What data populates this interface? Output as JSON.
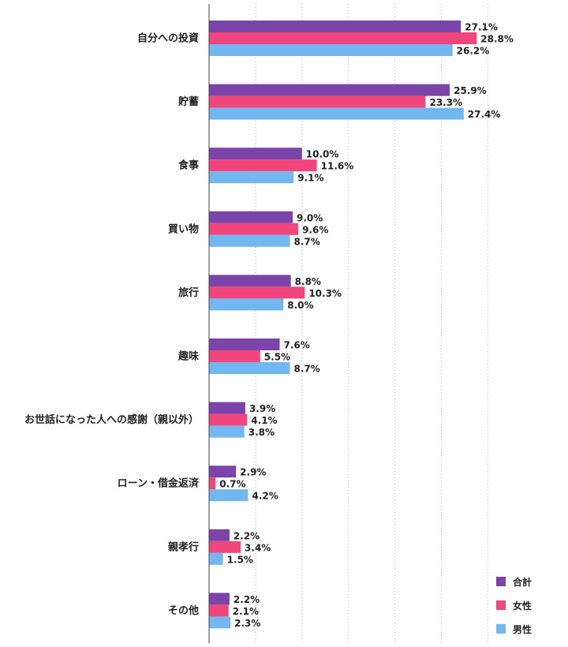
{
  "chart_data": {
    "type": "bar",
    "orientation": "horizontal",
    "categories": [
      "自分への投資",
      "貯蓄",
      "食事",
      "買い物",
      "旅行",
      "趣味",
      "お世話になった人への感謝（親以外）",
      "ローン・借金返済",
      "親孝行",
      "その他"
    ],
    "series": [
      {
        "name": "合計",
        "color": "#7b44ab",
        "values": [
          27.1,
          25.9,
          10.0,
          9.0,
          8.8,
          7.6,
          3.9,
          2.9,
          2.2,
          2.2
        ],
        "labels": [
          "27.1%",
          "25.9%",
          "10.0%",
          "9.0%",
          "8.8%",
          "7.6%",
          "3.9%",
          "2.9%",
          "2.2%",
          "2.2%"
        ]
      },
      {
        "name": "女性",
        "color": "#f0457d",
        "values": [
          28.8,
          23.3,
          11.6,
          9.6,
          10.3,
          5.5,
          4.1,
          0.7,
          3.4,
          2.1
        ],
        "labels": [
          "28.8%",
          "23.3%",
          "11.6%",
          "9.6%",
          "10.3%",
          "5.5%",
          "4.1%",
          "0.7%",
          "3.4%",
          "2.1%"
        ]
      },
      {
        "name": "男性",
        "color": "#73b7f0",
        "values": [
          26.2,
          27.4,
          9.1,
          8.7,
          8.0,
          8.7,
          3.8,
          4.2,
          1.5,
          2.3
        ],
        "labels": [
          "26.2%",
          "27.4%",
          "9.1%",
          "8.7%",
          "8.0%",
          "8.7%",
          "3.8%",
          "4.2%",
          "1.5%",
          "2.3%"
        ]
      }
    ],
    "xlim": [
      0,
      30
    ],
    "grid": true,
    "legend_position": "bottom-right"
  }
}
